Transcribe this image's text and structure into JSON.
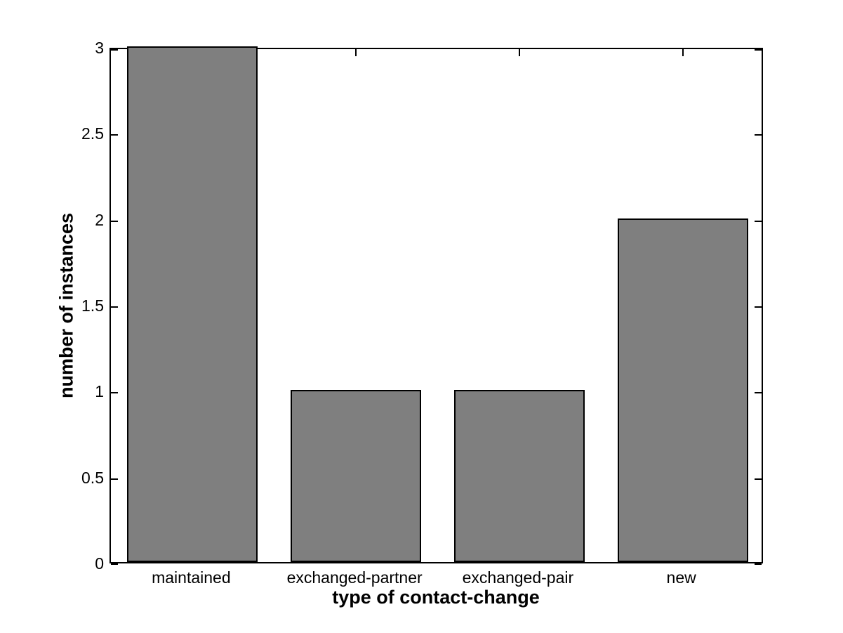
{
  "chart_data": {
    "type": "bar",
    "xlabel": "type of contact-change",
    "ylabel": "number of instances",
    "categories": [
      "maintained",
      "exchanged-partner",
      "exchanged-pair",
      "new"
    ],
    "values": [
      3,
      1,
      1,
      2
    ],
    "ylim": [
      0,
      3
    ],
    "yticks": [
      0,
      0.5,
      1,
      1.5,
      2,
      2.5,
      3
    ],
    "ytick_labels": [
      "0",
      "0.5",
      "1",
      "1.5",
      "2",
      "2.5",
      "3"
    ],
    "bar_width_fraction": 0.8,
    "grid": false,
    "legend": "none",
    "tick_direction": "in",
    "colors": {
      "bar_fill": "#7f7f7f",
      "bar_edge": "#000000",
      "axis": "#000000",
      "background": "#ffffff",
      "text": "#000000"
    }
  }
}
